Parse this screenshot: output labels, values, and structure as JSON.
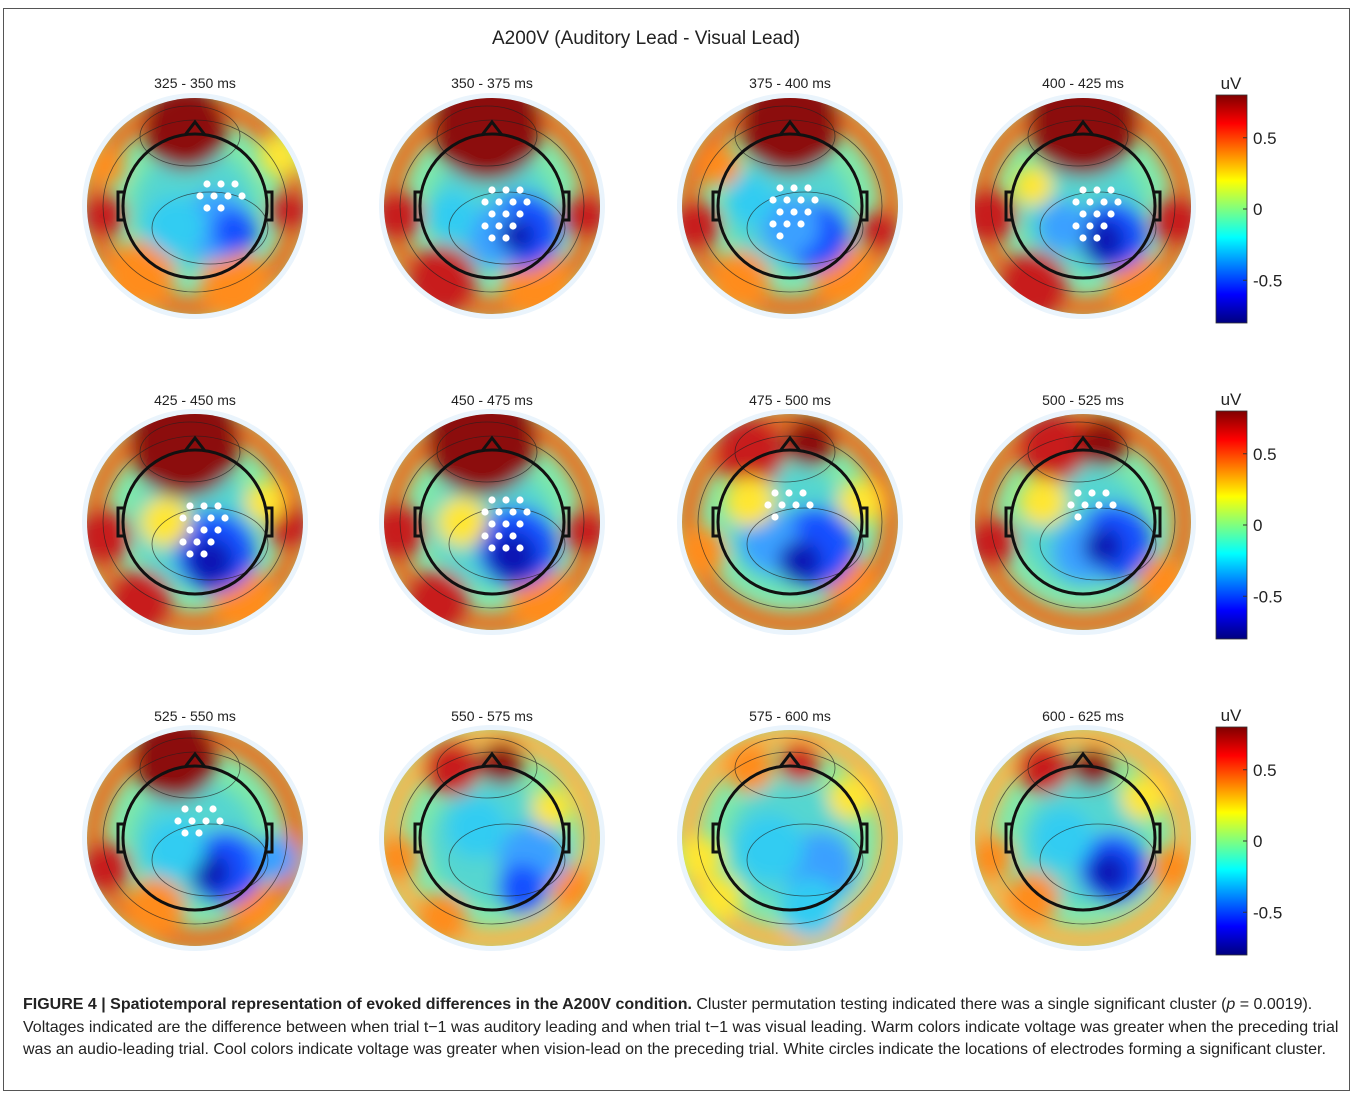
{
  "figure": {
    "title": "A200V (Auditory Lead - Visual Lead)",
    "panels": [
      {
        "time_window": "325 -  350 ms",
        "cluster_electrodes": 9
      },
      {
        "time_window": "350 - 375 ms",
        "cluster_electrodes": 15
      },
      {
        "time_window": "375 - 400 ms",
        "cluster_electrodes": 14
      },
      {
        "time_window": "400 - 425 ms",
        "cluster_electrodes": 15
      },
      {
        "time_window": "425 - 450 ms",
        "cluster_electrodes": 15
      },
      {
        "time_window": "450 - 475 ms",
        "cluster_electrodes": 16
      },
      {
        "time_window": "475 - 500 ms",
        "cluster_electrodes": 8
      },
      {
        "time_window": "500 - 525 ms",
        "cluster_electrodes": 8
      },
      {
        "time_window": "525 - 550 ms",
        "cluster_electrodes": 9
      },
      {
        "time_window": "550 - 575 ms",
        "cluster_electrodes": 0
      },
      {
        "time_window": "575 - 600 ms",
        "cluster_electrodes": 0
      },
      {
        "time_window": "600 - 625 ms",
        "cluster_electrodes": 0
      }
    ],
    "colorbar": {
      "unit": "uV",
      "range": [
        -0.8,
        0.8
      ],
      "ticks": [
        {
          "value": 0.5,
          "label": "0.5"
        },
        {
          "value": 0,
          "label": "0"
        },
        {
          "value": -0.5,
          "label": "-0.5"
        }
      ],
      "colormap": [
        "#00007f",
        "#0000ff",
        "#007fff",
        "#00ffff",
        "#7fff7f",
        "#ffff00",
        "#ff7f00",
        "#ff0000",
        "#7f0000"
      ]
    }
  },
  "caption": {
    "label": "FIGURE 4 | Spatiotemporal representation of evoked differences in the A200V condition.",
    "text_1": " Cluster permutation testing indicated there was a single significant cluster (",
    "p_symbol": "p",
    "text_2": " = 0.0019). Voltages indicated are the difference between when trial t−1 was auditory leading and when trial t−1 was visual leading. Warm colors indicate voltage was greater when the preceding trial was an audio-leading trial. Cool colors indicate voltage was greater when vision-lead on the preceding trial. White circles indicate the locations of electrodes forming a significant cluster."
  }
}
